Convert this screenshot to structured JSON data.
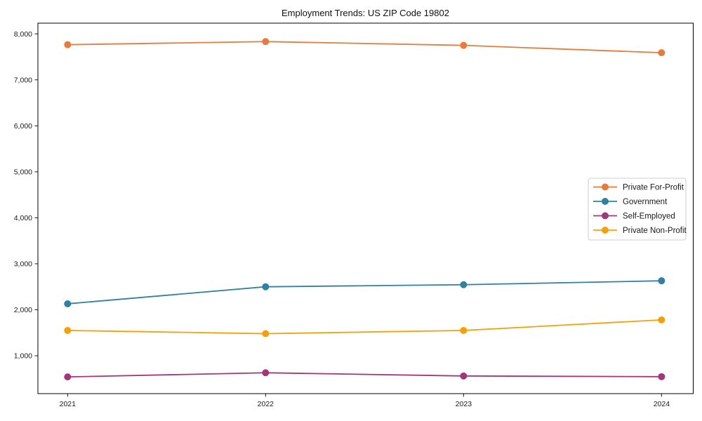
{
  "figure": {
    "background_color": "#ffffff",
    "spine_color": "#000000",
    "text_color": "#191919"
  },
  "chart_data": {
    "type": "line",
    "title": "Employment Trends: US ZIP Code 19802",
    "xlabel": "",
    "ylabel": "",
    "x": [
      2021,
      2022,
      2023,
      2024
    ],
    "x_tick_labels": [
      "2021",
      "2022",
      "2023",
      "2024"
    ],
    "y_ticks": [
      1000,
      2000,
      3000,
      4000,
      5000,
      6000,
      7000,
      8000
    ],
    "y_tick_labels": [
      "1,000",
      "2,000",
      "3,000",
      "4,000",
      "5,000",
      "6,000",
      "7,000",
      "8,000"
    ],
    "xlim": [
      2020.85,
      2024.16
    ],
    "ylim": [
      176,
      8233
    ],
    "grid": false,
    "marker": "circle",
    "legend": {
      "position": "center-right",
      "border_color": "#cccccc",
      "background_color": "#ffffff"
    },
    "series": [
      {
        "name": "Private For-Profit",
        "color": "#E57C3B",
        "values": [
          7765,
          7832,
          7750,
          7590
        ]
      },
      {
        "name": "Government",
        "color": "#30809F",
        "values": [
          2130,
          2500,
          2545,
          2630
        ]
      },
      {
        "name": "Self-Employed",
        "color": "#A2367C",
        "values": [
          540,
          630,
          560,
          545
        ]
      },
      {
        "name": "Private Non-Profit",
        "color": "#F4A009",
        "values": [
          1550,
          1480,
          1550,
          1780
        ]
      }
    ]
  }
}
